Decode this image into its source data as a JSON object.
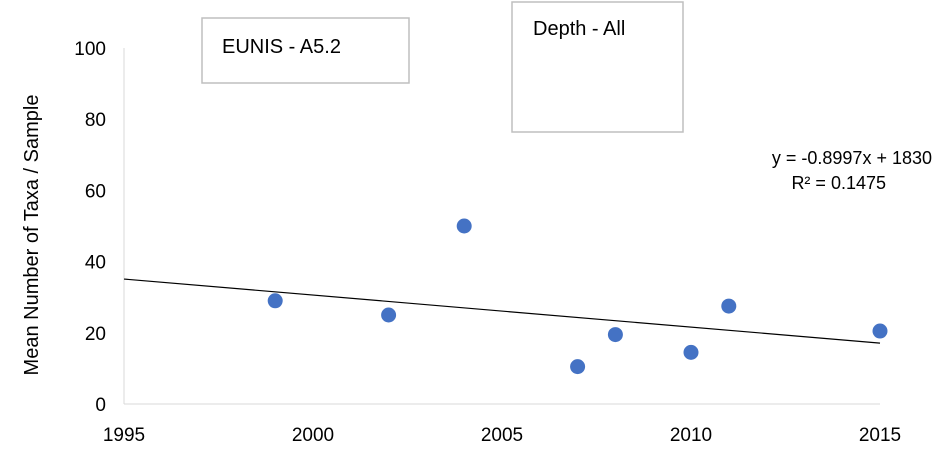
{
  "chart_data": {
    "type": "scatter",
    "ylabel": "Mean Number  of Taxa / Sample",
    "xlabel": "",
    "xlim": [
      1995,
      2015
    ],
    "ylim": [
      0,
      100
    ],
    "x_ticks": [
      1995,
      2000,
      2005,
      2010,
      2015
    ],
    "y_ticks": [
      0,
      20,
      40,
      60,
      80,
      100
    ],
    "grid": false,
    "series": [
      {
        "marker_color": "#4472C4",
        "points": [
          {
            "x": 1999,
            "y": 29
          },
          {
            "x": 2002,
            "y": 25
          },
          {
            "x": 2004,
            "y": 50
          },
          {
            "x": 2007,
            "y": 10.5
          },
          {
            "x": 2008,
            "y": 19.5
          },
          {
            "x": 2010,
            "y": 14.5
          },
          {
            "x": 2011,
            "y": 27.5
          },
          {
            "x": 2015,
            "y": 20.5
          }
        ]
      }
    ],
    "trendline": {
      "type": "linear",
      "slope": -0.8997,
      "intercept": 1830,
      "x_range": [
        1995,
        2015
      ],
      "equation": "y = -0.8997x + 1830",
      "r_squared": "R² = 0.1475",
      "color": "#000000"
    },
    "annotations": [
      {
        "name": "eunis-box",
        "text": "EUNIS - A5.2"
      },
      {
        "name": "depth-box",
        "text": "Depth - All"
      }
    ]
  }
}
